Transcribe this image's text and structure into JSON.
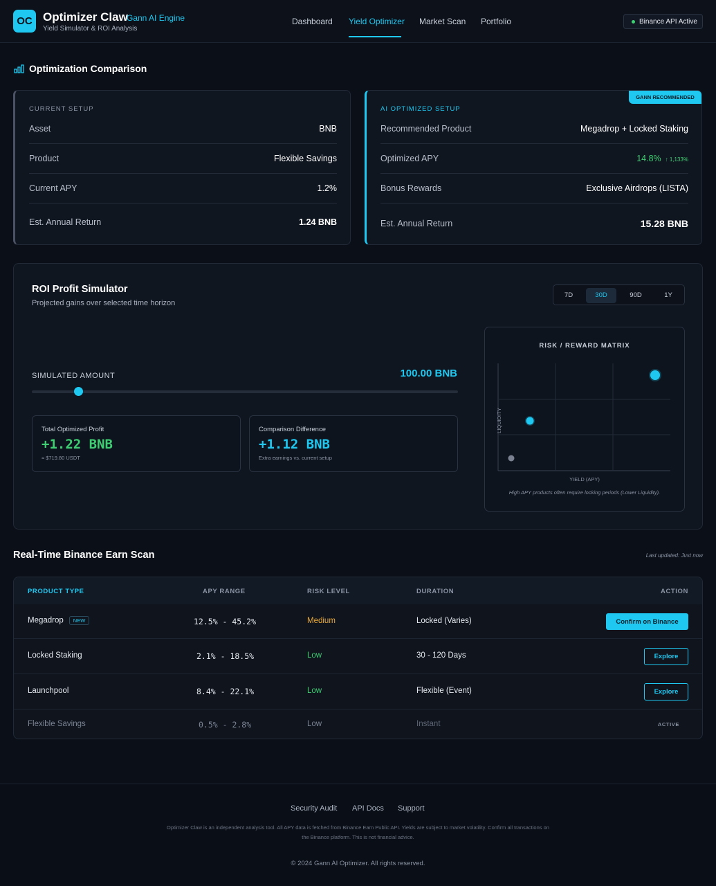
{
  "header": {
    "logo_text": "OC",
    "title": "Optimizer Claw",
    "engine": "Gann AI Engine",
    "subtitle": "Yield Simulator & ROI Analysis",
    "nav": [
      "Dashboard",
      "Yield Optimizer",
      "Market Scan",
      "Portfolio"
    ],
    "active_nav": "Yield Optimizer",
    "api_status": "Binance API Active"
  },
  "comparison": {
    "title": "Optimization Comparison",
    "current": {
      "label": "CURRENT SETUP",
      "rows": [
        {
          "key": "Asset",
          "value": "BNB"
        },
        {
          "key": "Product",
          "value": "Flexible Savings"
        },
        {
          "key": "Current APY",
          "value": "1.2%"
        },
        {
          "key": "Est. Annual Return",
          "value": "1.24 BNB"
        }
      ]
    },
    "optimized": {
      "badge": "GANN RECOMMENDED",
      "label": "AI OPTIMIZED SETUP",
      "rows": [
        {
          "key": "Recommended Product",
          "value": "Megadrop + Locked Staking"
        },
        {
          "key": "Optimized APY",
          "value": "14.8%",
          "delta": "↑ 1,133%"
        },
        {
          "key": "Bonus Rewards",
          "value": "Exclusive Airdrops (LISTA)"
        },
        {
          "key": "Est. Annual Return",
          "value": "15.28 BNB"
        }
      ]
    }
  },
  "simulator": {
    "title": "ROI Profit Simulator",
    "subtitle": "Projected gains over selected time horizon",
    "periods": [
      "7D",
      "30D",
      "90D",
      "1Y"
    ],
    "active_period": "30D",
    "amount_label": "SIMULATED AMOUNT",
    "amount": "100.00 BNB",
    "slider_fraction": 0.108,
    "profit_label": "Total Optimized Profit",
    "profit": "+1.22 BNB",
    "profit_usdt": "≈ $719.80 USDT",
    "diff_label": "Comparison Difference",
    "diff": "+1.12 BNB",
    "diff_note": "Extra earnings vs. current setup"
  },
  "matrix": {
    "title": "RISK / REWARD MATRIX",
    "x_label": "YIELD (APY)",
    "y_label": "LIQUIDITY",
    "note": "High APY products often require locking periods (Lower Liquidity)."
  },
  "scan": {
    "title": "Real-Time Binance Earn Scan",
    "updated": "Last updated: Just now",
    "columns": [
      "PRODUCT TYPE",
      "APY RANGE",
      "RISK LEVEL",
      "DURATION",
      "ACTION"
    ],
    "rows": [
      {
        "product": "Megadrop",
        "badge": "NEW",
        "apy": "12.5% - 45.2%",
        "risk": "Medium",
        "duration": "Locked (Varies)",
        "action": "Confirm on Binance"
      },
      {
        "product": "Locked Staking",
        "apy": "2.1% - 18.5%",
        "risk": "Low",
        "duration": "30 - 120 Days",
        "action": "Explore"
      },
      {
        "product": "Launchpool",
        "apy": "8.4% - 22.1%",
        "risk": "Low",
        "duration": "Flexible (Event)",
        "action": "Explore"
      },
      {
        "product": "Flexible Savings",
        "apy": "0.5% - 2.8%",
        "risk": "Low",
        "duration": "Instant",
        "action": "ACTIVE"
      }
    ]
  },
  "footer": {
    "links": [
      "Security Audit",
      "API Docs",
      "Support"
    ],
    "disclaimer": "Optimizer Claw is an independent analysis tool. All APY data is fetched from Binance Earn Public API. Yields are subject to market volatility. Confirm all transactions on the Binance platform. This is not financial advice.",
    "copyright": "© 2024 Gann AI Optimizer. All rights reserved."
  },
  "colors": {
    "accent": "#1ec8f0",
    "positive": "#3ecf72",
    "warning": "#e8a83a",
    "background": "#0b0f18"
  }
}
